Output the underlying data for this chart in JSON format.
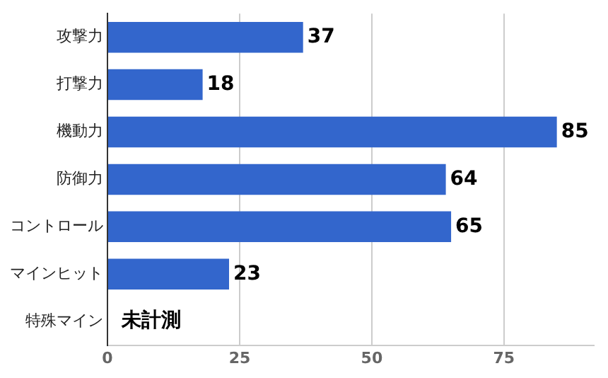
{
  "chart_data": {
    "type": "bar",
    "orientation": "horizontal",
    "categories": [
      "攻撃力",
      "打撃力",
      "機動力",
      "防御力",
      "コントロール",
      "マインヒット",
      "特殊マイン"
    ],
    "values": [
      37,
      18,
      85,
      64,
      65,
      23,
      null
    ],
    "value_labels": [
      "37",
      "18",
      "85",
      "64",
      "65",
      "23",
      "未計測"
    ],
    "color": "#3366cc",
    "xlim": [
      0,
      92
    ],
    "xticks": [
      0,
      25,
      50,
      75
    ],
    "grid": "x",
    "legend": false
  }
}
